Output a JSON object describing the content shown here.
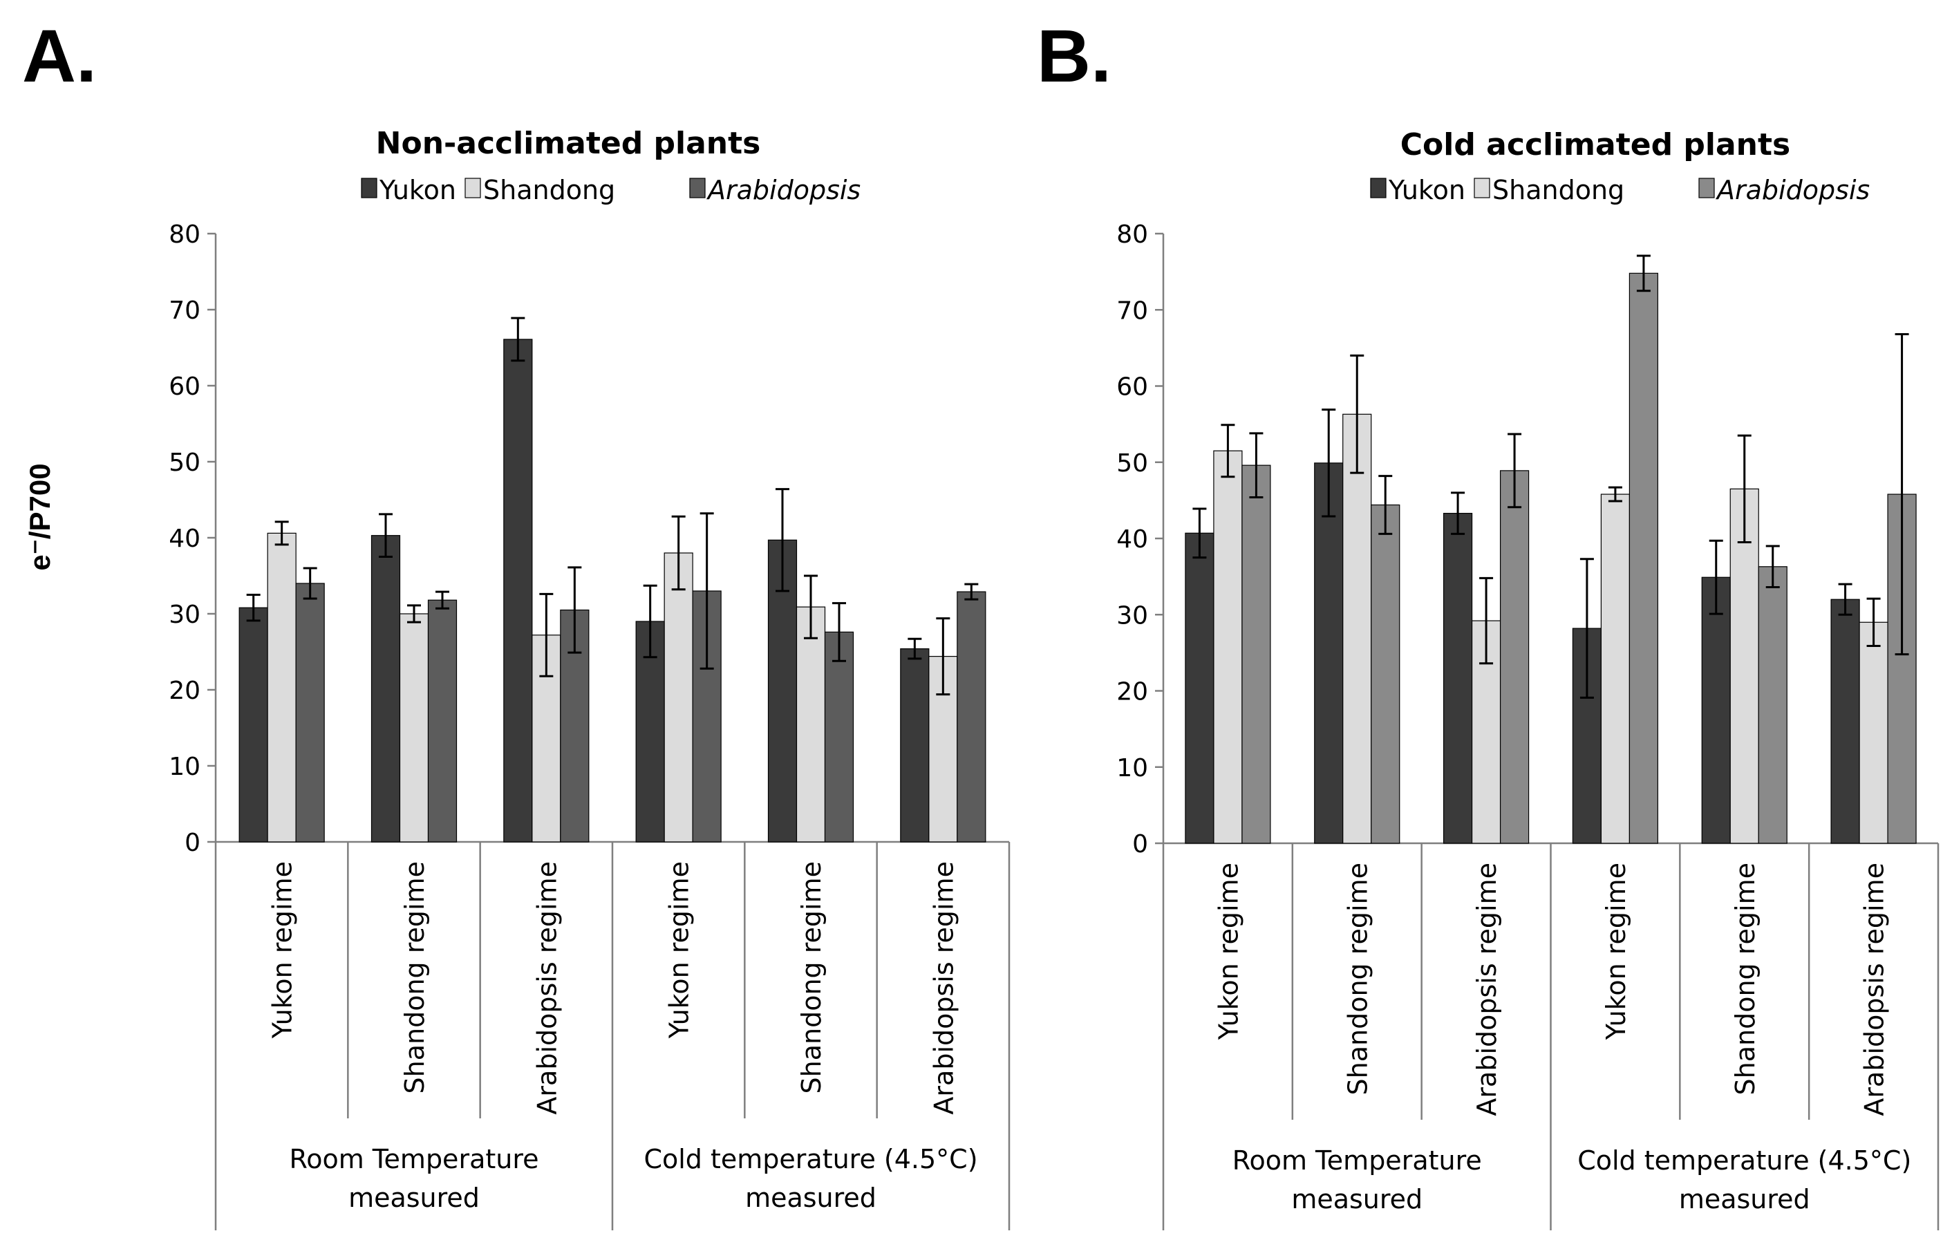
{
  "figure": {
    "ylabel": "e⁻/P700",
    "colors": {
      "yukon": "#3a3a3a",
      "shandong": "#dcdcdc",
      "arabidopsis_a": "#5c5c5c",
      "arabidopsis_b": "#8a8a8a"
    }
  },
  "chart_data": [
    {
      "panel": "A.",
      "type": "bar",
      "title": "Non-acclimated plants",
      "legend": [
        "Yukon",
        "Shandong",
        "Arabidopsis"
      ],
      "ylim": [
        0,
        80
      ],
      "yticks": [
        0,
        10,
        20,
        30,
        40,
        50,
        60,
        70,
        80
      ],
      "categories": [
        "Yukon regime",
        "Shandong regime",
        "Arabidopsis regime",
        "Yukon regime",
        "Shandong regime",
        "Arabidopsis regime"
      ],
      "groups": [
        {
          "label_line1": "Room Temperature",
          "label_line2": "measured",
          "span": [
            0,
            2
          ]
        },
        {
          "label_line1": "Cold temperature (4.5°C)",
          "label_line2": "measured",
          "span": [
            3,
            5
          ]
        }
      ],
      "series": [
        {
          "name": "Yukon",
          "values": [
            30.8,
            40.3,
            66.1,
            29.0,
            39.7,
            25.4
          ],
          "errors": [
            1.7,
            2.8,
            2.8,
            4.7,
            6.7,
            1.3
          ]
        },
        {
          "name": "Shandong",
          "values": [
            40.6,
            30.0,
            27.2,
            38.0,
            30.9,
            24.4
          ],
          "errors": [
            1.5,
            1.1,
            5.4,
            4.8,
            4.1,
            5.0
          ]
        },
        {
          "name": "Arabidopsis",
          "values": [
            34.0,
            31.8,
            30.5,
            33.0,
            27.6,
            32.9
          ],
          "errors": [
            2.0,
            1.1,
            5.6,
            10.2,
            3.8,
            1.0
          ]
        }
      ]
    },
    {
      "panel": "B.",
      "type": "bar",
      "title": "Cold acclimated plants",
      "legend": [
        "Yukon",
        "Shandong",
        "Arabidopsis"
      ],
      "ylim": [
        0,
        80
      ],
      "yticks": [
        0,
        10,
        20,
        30,
        40,
        50,
        60,
        70,
        80
      ],
      "categories": [
        "Yukon regime",
        "Shandong regime",
        "Arabidopsis regime",
        "Yukon regime",
        "Shandong regime",
        "Arabidopsis regime"
      ],
      "groups": [
        {
          "label_line1": "Room Temperature",
          "label_line2": "measured",
          "span": [
            0,
            2
          ]
        },
        {
          "label_line1": "Cold temperature (4.5°C)",
          "label_line2": "measured",
          "span": [
            3,
            5
          ]
        }
      ],
      "series": [
        {
          "name": "Yukon",
          "values": [
            40.7,
            49.9,
            43.3,
            28.2,
            34.9,
            32.0
          ],
          "errors": [
            3.2,
            7.0,
            2.7,
            9.1,
            4.8,
            2.0
          ]
        },
        {
          "name": "Shandong",
          "values": [
            51.5,
            56.3,
            29.2,
            45.8,
            46.5,
            29.0
          ],
          "errors": [
            3.4,
            7.7,
            5.6,
            0.9,
            7.0,
            3.1
          ]
        },
        {
          "name": "Arabidopsis",
          "values": [
            49.6,
            44.4,
            48.9,
            74.8,
            36.3,
            45.8
          ],
          "errors": [
            4.2,
            3.8,
            4.8,
            2.3,
            2.7,
            21.0
          ]
        }
      ]
    }
  ]
}
